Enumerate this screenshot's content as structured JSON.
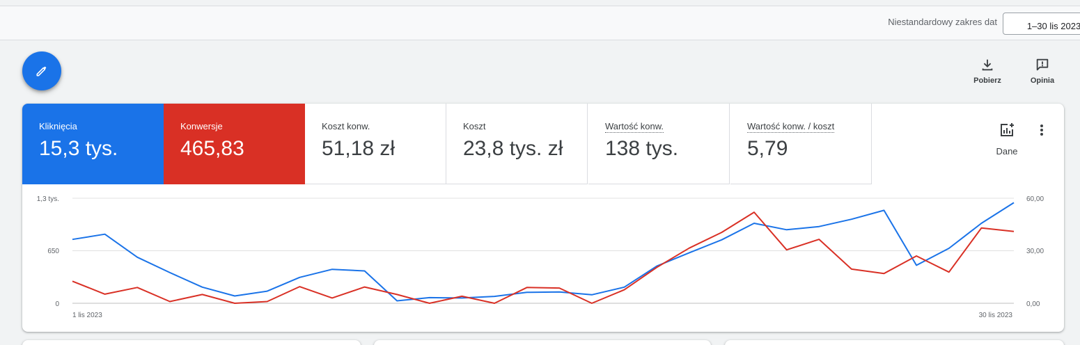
{
  "header": {
    "date_range_label": "Niestandardowy zakres dat",
    "date_range_value": "1–30 lis 2023"
  },
  "toolbar": {
    "download_label": "Pobierz",
    "feedback_label": "Opinia"
  },
  "metrics": [
    {
      "label": "Kliknięcia",
      "value": "15,3 tys."
    },
    {
      "label": "Konwersje",
      "value": "465,83"
    },
    {
      "label": "Koszt konw.",
      "value": "51,18 zł"
    },
    {
      "label": "Koszt",
      "value": "23,8 tys. zł"
    },
    {
      "label": "Wartość konw.",
      "value": "138 tys."
    },
    {
      "label": "Wartość konw. / koszt",
      "value": "5,79"
    }
  ],
  "data_button_label": "Dane",
  "colors": {
    "blue": "#1a73e8",
    "red": "#d93025"
  },
  "chart_data": {
    "type": "line",
    "x_start_label": "1 lis 2023",
    "x_end_label": "30 lis 2023",
    "left_axis_ticks": [
      "0",
      "650",
      "1,3 tys."
    ],
    "right_axis_ticks": [
      "0,00",
      "30,00",
      "60,00"
    ],
    "y_left_range": [
      0,
      1300
    ],
    "y_right_range": [
      0,
      60
    ],
    "grid": true,
    "x": [
      1,
      2,
      3,
      4,
      5,
      6,
      7,
      8,
      9,
      10,
      11,
      12,
      13,
      14,
      15,
      16,
      17,
      18,
      19,
      20,
      21,
      22,
      23,
      24,
      25,
      26,
      27,
      28,
      29,
      30
    ],
    "series": [
      {
        "axis": "left",
        "color": "#1a73e8",
        "values": [
          790,
          855,
          570,
          380,
          200,
          90,
          150,
          320,
          420,
          400,
          30,
          70,
          65,
          85,
          135,
          140,
          105,
          200,
          460,
          625,
          785,
          990,
          910,
          950,
          1040,
          1150,
          470,
          680,
          990,
          1245
        ]
      },
      {
        "axis": "right",
        "color": "#d93025",
        "values": [
          12.6,
          5.2,
          9.0,
          1.0,
          5.0,
          0.0,
          1.0,
          9.5,
          3.0,
          9.3,
          5.0,
          0.0,
          4.0,
          0.0,
          9.0,
          8.7,
          0.0,
          7.7,
          20.5,
          31.5,
          40.5,
          52.0,
          30.5,
          36.5,
          19.5,
          17.0,
          27.0,
          17.8,
          43.0,
          41.0
        ]
      }
    ]
  }
}
